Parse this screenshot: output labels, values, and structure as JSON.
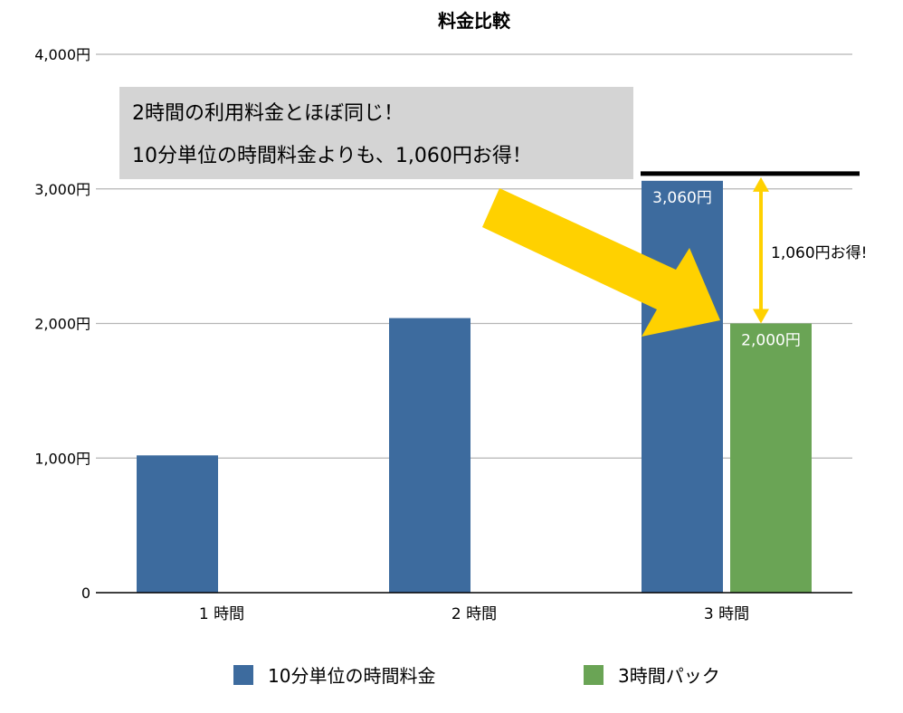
{
  "chart_data": {
    "type": "bar",
    "title": "料金比較",
    "categories": [
      "1 時間",
      "2 時間",
      "3 時間"
    ],
    "series": [
      {
        "name": "10分単位の時間料金",
        "color": "#3d6b9e",
        "values": [
          1020,
          2040,
          3060
        ]
      },
      {
        "name": "3時間パック",
        "color": "#6aa455",
        "values": [
          null,
          null,
          2000
        ]
      }
    ],
    "y_ticks": [
      {
        "value": 0,
        "label": "0"
      },
      {
        "value": 1000,
        "label": "1,000円"
      },
      {
        "value": 2000,
        "label": "2,000円"
      },
      {
        "value": 3000,
        "label": "3,000円"
      },
      {
        "value": 4000,
        "label": "4,000円"
      }
    ],
    "ylim": [
      0,
      4000
    ],
    "grid": true,
    "legend_position": "bottom",
    "data_labels": [
      {
        "series": 0,
        "category": 2,
        "text": "3,060円"
      },
      {
        "series": 1,
        "category": 2,
        "text": "2,000円"
      }
    ],
    "annotations": {
      "note_lines": [
        "2時間の利用料金とほぼ同じ！",
        "10分単位の時間料金よりも、1,060円お得！"
      ],
      "difference_label": "1,060円お得!",
      "arrow_color": "#ffd100",
      "line_color": "#000000"
    }
  }
}
